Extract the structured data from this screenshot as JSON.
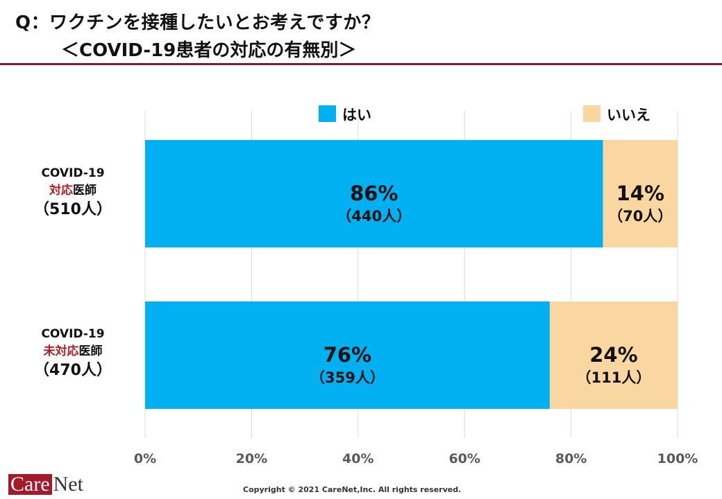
{
  "header": {
    "title": "Q：ワクチンを接種したいとお考えですか？",
    "subtitle": "＜COVID-19患者の対応の有無別＞"
  },
  "chart_data": {
    "type": "bar",
    "orientation": "horizontal",
    "stacked": true,
    "percent": true,
    "categories": [
      {
        "line1": "COVID-19",
        "highlight": "対応",
        "suffix": "医師",
        "n": "（510人）"
      },
      {
        "line1": "COVID-19",
        "highlight": "未対応",
        "suffix": "医師",
        "n": "（470人）"
      }
    ],
    "series": [
      {
        "name": "はい",
        "color": "#00b0f0",
        "values": [
          86,
          76
        ],
        "labels": [
          "86%",
          "76%"
        ],
        "counts": [
          "（440人）",
          "（359人）"
        ]
      },
      {
        "name": "いいえ",
        "color": "#fad7a0",
        "values": [
          14,
          24
        ],
        "labels": [
          "14%",
          "24%"
        ],
        "counts": [
          "（70人）",
          "（111人）"
        ]
      }
    ],
    "xlim": [
      0,
      100
    ],
    "xticks": [
      "0%",
      "20%",
      "40%",
      "60%",
      "80%",
      "100%"
    ],
    "grid": true,
    "legend": "top"
  },
  "footer": {
    "logo": "CareNet",
    "logo_care": "Care",
    "logo_net": "Net",
    "copyright": "Copyright © 2021 CareNet,Inc.  All rights reserved."
  }
}
